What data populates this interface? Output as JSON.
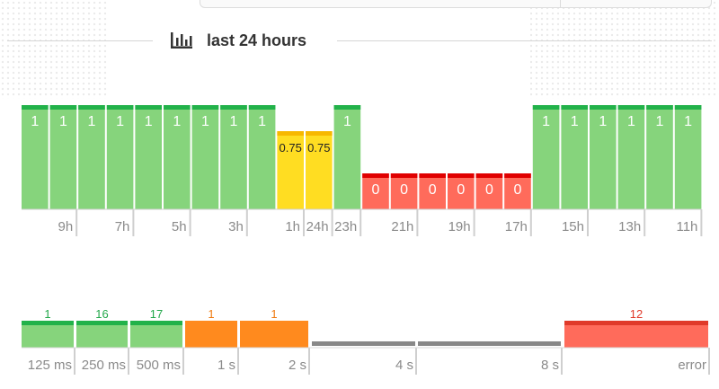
{
  "header": {
    "title": "last 24 hours",
    "icon": "bar-chart-icon"
  },
  "colors": {
    "green": "#86d47c",
    "green_top": "#22b24a",
    "yellow": "#ffdd22",
    "yellow_top": "#f7b800",
    "red": "#ff6b5b",
    "red_top": "#e00000",
    "orange": "#ff8a1e",
    "gray": "#888888",
    "label_green": "#22a84a",
    "label_orange": "#ef7a10",
    "label_red": "#e03a2a"
  },
  "chart_data": [
    {
      "type": "bar",
      "title": "",
      "ylim": [
        0,
        1
      ],
      "values": [
        1,
        1,
        1,
        1,
        1,
        1,
        1,
        1,
        1,
        0.75,
        0.75,
        1,
        0,
        0,
        0,
        0,
        0,
        0,
        1,
        1,
        1,
        1,
        1,
        1
      ],
      "ticks": [
        {
          "label": "9h",
          "after": 1
        },
        {
          "label": "7h",
          "after": 3
        },
        {
          "label": "5h",
          "after": 5
        },
        {
          "label": "3h",
          "after": 7
        },
        {
          "label": "1h",
          "after": 9
        },
        {
          "label": "24h",
          "after": 10
        },
        {
          "label": "23h",
          "after": 11
        },
        {
          "label": "21h",
          "after": 13
        },
        {
          "label": "19h",
          "after": 15
        },
        {
          "label": "17h",
          "after": 17
        },
        {
          "label": "15h",
          "after": 19
        },
        {
          "label": "13h",
          "after": 21
        },
        {
          "label": "11h",
          "after": 23
        }
      ]
    },
    {
      "type": "bar",
      "title": "",
      "categories": [
        "125 ms",
        "250 ms",
        "500 ms",
        "1 s",
        "2 s",
        "4 s",
        "8 s",
        "error"
      ],
      "values": [
        1,
        16,
        17,
        1,
        1,
        0,
        0,
        12
      ],
      "status": [
        "ok",
        "ok",
        "ok",
        "slow",
        "slow",
        "none",
        "none",
        "error"
      ]
    }
  ]
}
